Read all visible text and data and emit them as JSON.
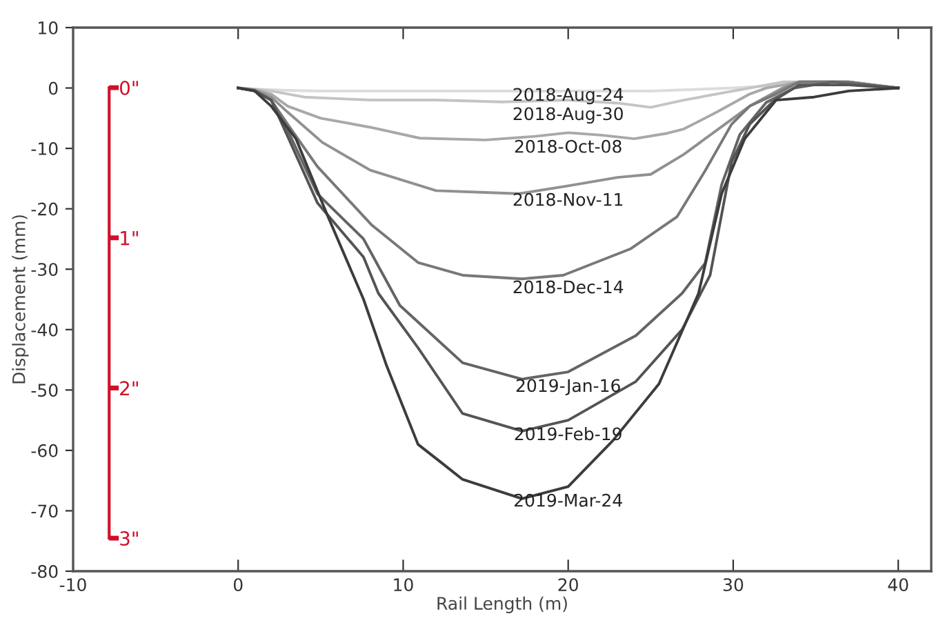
{
  "chart_data": {
    "type": "line",
    "xlabel": "Rail Length (m)",
    "ylabel": "Displacement (mm)",
    "xlim": [
      -10,
      42
    ],
    "xticks": [
      -10,
      0,
      10,
      20,
      30,
      40
    ],
    "ylim": [
      -80,
      10
    ],
    "yticks": [
      10,
      0,
      -10,
      -20,
      -30,
      -40,
      -50,
      -60,
      -70,
      -80
    ],
    "y2lim": [
      3.22,
      -0.4
    ],
    "y2ticks": [
      {
        "value": 0,
        "label": "0\""
      },
      {
        "value": 1,
        "label": "1\""
      },
      {
        "value": 2,
        "label": "2\""
      },
      {
        "value": 3,
        "label": "3\""
      }
    ],
    "grid": false,
    "legend": false,
    "marker": "none",
    "line_style": "solid",
    "series": [
      {
        "name": "2018-Aug-24",
        "color": "#dcdcdc",
        "x": [
          0,
          1,
          3,
          5,
          10,
          15,
          20,
          25,
          30,
          33,
          36,
          38,
          40
        ],
        "values": [
          0,
          -0.2,
          -0.4,
          -0.5,
          -0.5,
          -0.5,
          -0.5,
          -0.5,
          0,
          0.5,
          1,
          0.5,
          0
        ]
      },
      {
        "name": "2018-Aug-30",
        "color": "#c4c4c4",
        "x": [
          0,
          1,
          2,
          4,
          8,
          12,
          16,
          20,
          23,
          25,
          27,
          30,
          31,
          33,
          36,
          38,
          40
        ],
        "values": [
          0,
          -0.2,
          -0.5,
          -1.5,
          -2,
          -2,
          -2.3,
          -2,
          -2.5,
          -3.2,
          -2,
          -0.5,
          0,
          1,
          1,
          0.5,
          0
        ]
      },
      {
        "name": "2018-Oct-08",
        "color": "#a8a8a8",
        "x": [
          0,
          1,
          2,
          3,
          5,
          8,
          11,
          15,
          18,
          20,
          22,
          24,
          26,
          27,
          29,
          31,
          32,
          34,
          37,
          40
        ],
        "values": [
          0,
          -0.3,
          -1,
          -3,
          -5,
          -6.5,
          -8.3,
          -8.6,
          -8,
          -7.4,
          -7.8,
          -8.4,
          -7.5,
          -6.8,
          -4,
          -1,
          0,
          1,
          1,
          0
        ]
      },
      {
        "name": "2018-Nov-11",
        "color": "#909090",
        "x": [
          0,
          1,
          2,
          3,
          5.1,
          8,
          12,
          15,
          17,
          20,
          23,
          25,
          27,
          29,
          31,
          33,
          34,
          37,
          40
        ],
        "values": [
          0,
          -0.3,
          -1.5,
          -4,
          -9,
          -13.6,
          -17,
          -17.3,
          -17.5,
          -16.2,
          -14.8,
          -14.3,
          -11,
          -7,
          -3,
          0,
          1,
          1,
          0
        ]
      },
      {
        "name": "2018-Dec-14",
        "color": "#787878",
        "x": [
          0,
          1,
          2,
          3,
          4.8,
          8.1,
          10.9,
          13.6,
          17.2,
          19.7,
          23.8,
          26.6,
          28.3,
          29.9,
          31,
          32.6,
          34,
          37,
          40
        ],
        "values": [
          0,
          -0.4,
          -2,
          -6,
          -13,
          -22.7,
          -28.9,
          -31,
          -31.6,
          -31,
          -26.6,
          -21.3,
          -13.7,
          -6,
          -3,
          -1,
          1,
          1,
          0
        ]
      },
      {
        "name": "2019-Jan-16",
        "color": "#646464",
        "x": [
          0,
          1,
          2,
          3,
          4.8,
          7.6,
          9.8,
          13.6,
          17.2,
          20,
          24.1,
          26.9,
          28.3,
          29.3,
          30.4,
          32,
          33.7,
          36,
          40
        ],
        "values": [
          0,
          -0.4,
          -2,
          -7,
          -17.5,
          -25,
          -36,
          -45.5,
          -48.2,
          -47,
          -41,
          -34,
          -29,
          -16,
          -7.7,
          -2.4,
          0,
          1,
          0
        ]
      },
      {
        "name": "2019-Feb-19",
        "color": "#545454",
        "x": [
          0,
          1,
          2,
          3,
          4.8,
          7.6,
          8.5,
          10.9,
          13.6,
          17.2,
          20,
          24.1,
          26.9,
          28.6,
          29.9,
          31,
          32.5,
          34,
          37,
          40
        ],
        "values": [
          0,
          -0.5,
          -2,
          -8,
          -19,
          -28,
          -34,
          -43,
          -53.9,
          -56.8,
          -55,
          -48.6,
          -40,
          -31,
          -12.3,
          -6,
          -2,
          0.5,
          0.5,
          0
        ]
      },
      {
        "name": "2019-Mar-24",
        "color": "#3c3c3c",
        "x": [
          0,
          1,
          2,
          3.5,
          5.4,
          7.6,
          9,
          10.9,
          12.3,
          13.6,
          17.2,
          20,
          22.7,
          25.5,
          27.9,
          29.3,
          30.7,
          32.6,
          34.9,
          37,
          40
        ],
        "values": [
          0,
          -0.5,
          -3,
          -8.4,
          -21,
          -35,
          -46,
          -59,
          -62,
          -64.8,
          -68,
          -66,
          -58.4,
          -49,
          -34,
          -17.5,
          -8.4,
          -2,
          -1.5,
          -0.5,
          0
        ]
      }
    ]
  }
}
